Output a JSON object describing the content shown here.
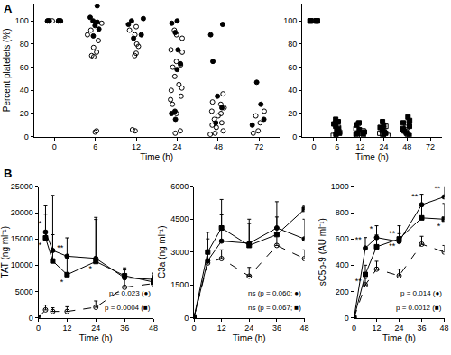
{
  "chart_data": [
    {
      "type": "scatter",
      "panel": "A",
      "categories": [
        "0",
        "6",
        "12",
        "24",
        "48",
        "72"
      ],
      "x_label": "Time (h)",
      "y_label": "Percent platelets (%)",
      "ylim": [
        0,
        115
      ],
      "yticks": [
        0,
        20,
        40,
        60,
        80,
        100
      ],
      "grid": false,
      "series": [
        {
          "color": "#000000",
          "marker": "circle",
          "values": [
            [
              100,
              100,
              100,
              100
            ],
            [
              113,
              103,
              100,
              99,
              96,
              93,
              87
            ],
            [
              102,
              100,
              97,
              88,
              85
            ],
            [
              100,
              98,
              90,
              75,
              63,
              58,
              22,
              20,
              15
            ],
            [
              97,
              88,
              65,
              35,
              25,
              12
            ],
            [
              47,
              28,
              15,
              10
            ]
          ]
        },
        {
          "color": "#000000",
          "marker": "circle-open",
          "values": [
            [
              100,
              100,
              100,
              100,
              100,
              100
            ],
            [
              98,
              92,
              88,
              83,
              77,
              73,
              70,
              69,
              5,
              4
            ],
            [
              95,
              92,
              88,
              80,
              78,
              72,
              70,
              6,
              5
            ],
            [
              92,
              88,
              85,
              75,
              73,
              65,
              62,
              60,
              52,
              45,
              42,
              40,
              35,
              32,
              28,
              20,
              5,
              3
            ],
            [
              37,
              30,
              28,
              25,
              22,
              20,
              18,
              15,
              12,
              10,
              8,
              5,
              3,
              2
            ],
            [
              22,
              18,
              12,
              5,
              3
            ]
          ]
        }
      ]
    },
    {
      "type": "scatter",
      "categories": [
        "0",
        "6",
        "12",
        "24",
        "48",
        "72"
      ],
      "x_label": "Time (h)",
      "ylim": [
        0,
        115
      ],
      "yticks": [
        0,
        20,
        40,
        60,
        80,
        100
      ],
      "grid": false,
      "series": [
        {
          "color": "#000000",
          "marker": "square",
          "values": [
            [
              100,
              100,
              100,
              100
            ],
            [
              15,
              13,
              11,
              9,
              7,
              5,
              3,
              2
            ],
            [
              12,
              10,
              6,
              4,
              3,
              2,
              1
            ],
            [
              13,
              10,
              8,
              6,
              4,
              3,
              2
            ],
            [
              17,
              14,
              12,
              9,
              7,
              5,
              3,
              1
            ],
            []
          ]
        },
        {
          "color": "#000000",
          "marker": "square-open",
          "values": [
            [
              100,
              100,
              100
            ],
            [
              12,
              8,
              6,
              4,
              2,
              1
            ],
            [
              11,
              7,
              5,
              3,
              1,
              0
            ],
            [
              9,
              7,
              5,
              3,
              2,
              1
            ],
            [
              13,
              10,
              8,
              6,
              4,
              2
            ],
            []
          ]
        }
      ]
    },
    {
      "type": "line",
      "panel": "B",
      "x_label": "Time (h)",
      "y_label": "TAT (ng ml⁻¹)",
      "xlim": [
        0,
        48
      ],
      "xticks": [
        0,
        12,
        24,
        36,
        48
      ],
      "ylim": [
        0,
        25000
      ],
      "yticks": [
        0,
        5000,
        10000,
        15000,
        20000,
        25000
      ],
      "grid": false,
      "annotations": [
        "p = 0.023 (●)",
        "p = 0.0004 (■)"
      ],
      "series": [
        {
          "color": "#000000",
          "marker": "circle",
          "line_style": "solid",
          "x": [
            3,
            6,
            12,
            24,
            36,
            48
          ],
          "values": [
            16300,
            12800,
            11700,
            11300,
            7600,
            7300
          ],
          "errors": [
            5000,
            10500,
            3500,
            7800,
            1500,
            1200
          ],
          "significance": [
            "**",
            null,
            "**",
            null,
            null,
            null
          ]
        },
        {
          "color": "#000000",
          "marker": "square",
          "line_style": "solid",
          "x": [
            3,
            6,
            12,
            24,
            36,
            48
          ],
          "values": [
            15200,
            10800,
            8200,
            10700,
            8000,
            6800
          ],
          "errors": [
            4500,
            5000,
            3000,
            8000,
            1500,
            1000
          ],
          "significance": [
            "**",
            null,
            "*",
            "*",
            null,
            null
          ]
        },
        {
          "color": "#000000",
          "marker": "circle-open",
          "line_style": "dash",
          "x": [
            0,
            3,
            6,
            12,
            24,
            36,
            48
          ],
          "values": [
            0,
            1500,
            1200,
            1200,
            2000,
            5800,
            6500
          ],
          "errors": [
            0,
            900,
            700,
            900,
            1200,
            1800,
            1500
          ]
        }
      ]
    },
    {
      "type": "line",
      "x_label": "Time (h)",
      "y_label": "C3a (ng ml⁻¹)",
      "xlim": [
        0,
        48
      ],
      "xticks": [
        0,
        12,
        24,
        36,
        48
      ],
      "ylim": [
        0,
        6000
      ],
      "yticks": [
        0,
        1500,
        3000,
        4500,
        6000
      ],
      "grid": false,
      "annotations": [
        "ns (p = 0.060; ●)",
        "ns (p = 0.067; ■)"
      ],
      "series": [
        {
          "color": "#000000",
          "marker": "circle",
          "line_style": "solid",
          "x": [
            0,
            6,
            12,
            24,
            36,
            48
          ],
          "values": [
            0,
            2600,
            3500,
            3400,
            4100,
            3600
          ],
          "errors": [
            0,
            1000,
            1200,
            1100,
            1200,
            900
          ]
        },
        {
          "color": "#000000",
          "marker": "square",
          "line_style": "solid",
          "x": [
            0,
            6,
            12,
            24,
            36,
            48
          ],
          "values": [
            0,
            3000,
            4100,
            3300,
            3800,
            4950
          ],
          "errors": [
            0,
            900,
            1300,
            1000,
            800,
            150
          ]
        },
        {
          "color": "#000000",
          "marker": "circle-open",
          "line_style": "dash",
          "x": [
            0,
            6,
            12,
            24,
            36,
            48
          ],
          "values": [
            0,
            2500,
            2700,
            1900,
            3300,
            2700
          ],
          "errors": [
            0,
            500,
            400,
            400,
            600,
            400
          ]
        }
      ]
    },
    {
      "type": "line",
      "x_label": "Time (h)",
      "y_label": "sC5b-9 (AU ml⁻¹)",
      "xlim": [
        0,
        48
      ],
      "xticks": [
        0,
        12,
        24,
        36,
        48
      ],
      "ylim": [
        0,
        1000
      ],
      "yticks": [
        0,
        200,
        400,
        600,
        800,
        1000
      ],
      "grid": false,
      "annotations": [
        "p = 0.014 (●)",
        "p = 0.0012 (■)"
      ],
      "series": [
        {
          "color": "#000000",
          "marker": "circle",
          "line_style": "solid",
          "x": [
            0,
            6,
            12,
            24,
            36,
            48
          ],
          "values": [
            0,
            530,
            610,
            580,
            860,
            920
          ],
          "errors": [
            0,
            80,
            90,
            60,
            80,
            100
          ],
          "significance": [
            null,
            "**",
            "*",
            "**",
            "**",
            "**"
          ]
        },
        {
          "color": "#000000",
          "marker": "square",
          "line_style": "solid",
          "x": [
            0,
            6,
            12,
            24,
            36,
            48
          ],
          "values": [
            0,
            330,
            540,
            600,
            760,
            750
          ],
          "errors": [
            0,
            70,
            90,
            100,
            100,
            120
          ],
          "significance": [
            null,
            "**",
            null,
            "**",
            null,
            "*"
          ]
        },
        {
          "color": "#000000",
          "marker": "circle-open",
          "line_style": "dash",
          "x": [
            0,
            6,
            12,
            24,
            36,
            48
          ],
          "values": [
            0,
            250,
            370,
            320,
            560,
            500
          ],
          "errors": [
            0,
            50,
            60,
            50,
            60,
            50
          ]
        }
      ]
    }
  ]
}
